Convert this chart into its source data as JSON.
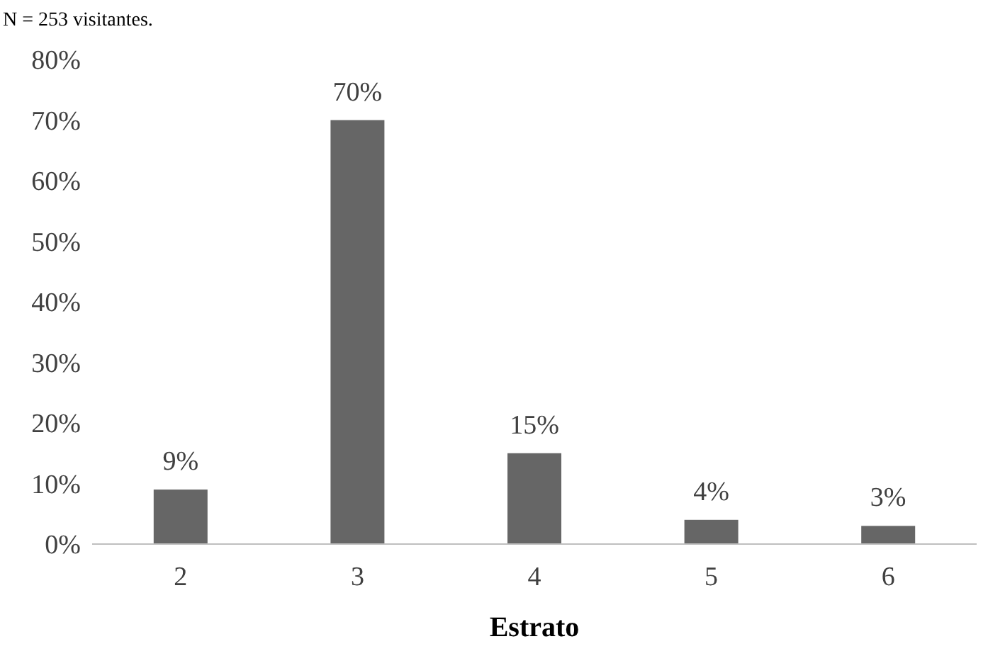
{
  "chart_data": {
    "type": "bar",
    "xlabel": "Estrato",
    "annotations": [
      "N = 253 visitantes."
    ],
    "categories": [
      "2",
      "3",
      "4",
      "5",
      "6"
    ],
    "values": [
      9,
      70,
      15,
      4,
      3
    ],
    "value_labels": [
      "9%",
      "70%",
      "15%",
      "4%",
      "3%"
    ],
    "color": "#666666",
    "ylim": [
      0,
      80
    ],
    "yticks": [
      {
        "value": 0,
        "label": "0%"
      },
      {
        "value": 10,
        "label": "10%"
      },
      {
        "value": 20,
        "label": "20%"
      },
      {
        "value": 30,
        "label": "30%"
      },
      {
        "value": 40,
        "label": "40%"
      },
      {
        "value": 50,
        "label": "50%"
      },
      {
        "value": 60,
        "label": "60%"
      },
      {
        "value": 70,
        "label": "70%"
      },
      {
        "value": 80,
        "label": "80%"
      }
    ],
    "grid": false
  }
}
